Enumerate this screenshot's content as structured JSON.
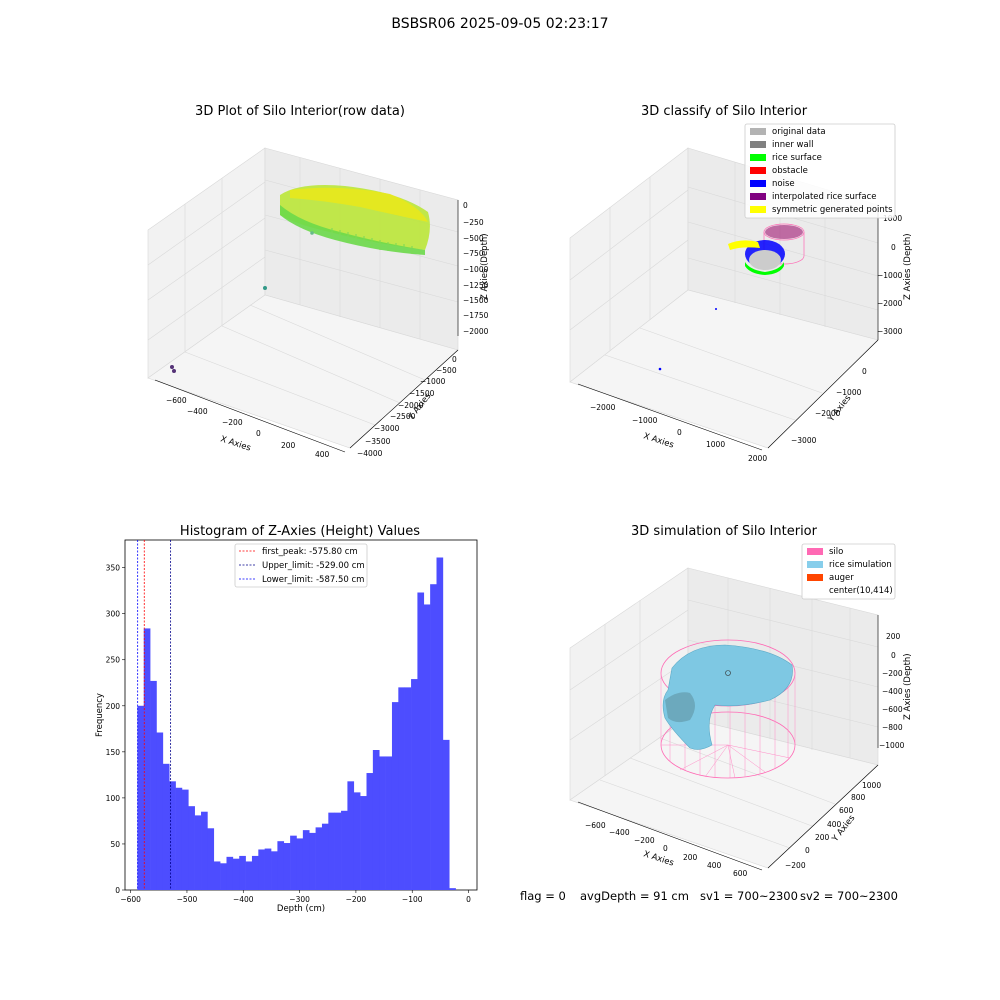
{
  "suptitle": "BSBSR06 2025-09-05 02:23:17",
  "footer": {
    "flag": "flag = 0",
    "avg": "avgDepth = 91 cm",
    "sv1": "sv1 = 700~2300",
    "sv2": "sv2 = 700~2300"
  },
  "chart_data": [
    {
      "type": "scatter",
      "title": "3D Plot of Silo Interior(row data)",
      "xlabel": "X Axies",
      "ylabel": "Y Axies",
      "zlabel": "Z Axies (Depth)",
      "xticks": [
        "−600",
        "−400",
        "−200",
        "0",
        "200",
        "400"
      ],
      "yticks": [
        "−4000",
        "−3500",
        "−3000",
        "−2500",
        "−2000",
        "−1500",
        "−1000",
        "−500",
        "0"
      ],
      "zticks": [
        "0",
        "−250",
        "−500",
        "−750",
        "−1000",
        "−1250",
        "−1500",
        "−1750",
        "−2000"
      ]
    },
    {
      "type": "scatter",
      "title": "3D classify of Silo Interior",
      "xlabel": "X Axies",
      "ylabel": "Y Axies",
      "zlabel": "Z Axies (Depth)",
      "xticks": [
        "−2000",
        "−1000",
        "0",
        "1000",
        "2000"
      ],
      "yticks": [
        "−3000",
        "−2000",
        "−1000",
        "0"
      ],
      "zticks": [
        "1000",
        "0",
        "−1000",
        "−2000",
        "−3000"
      ],
      "legend": [
        {
          "label": "original data",
          "color": "#b3b3b3"
        },
        {
          "label": "inner wall",
          "color": "#808080"
        },
        {
          "label": "rice surface",
          "color": "#00ff00"
        },
        {
          "label": "obstacle",
          "color": "#ff0000"
        },
        {
          "label": "noise",
          "color": "#0000ff"
        },
        {
          "label": "interpolated rice surface",
          "color": "#800080"
        },
        {
          "label": "symmetric generated points",
          "color": "#ffff00"
        }
      ],
      "legend_loc": "upper right"
    },
    {
      "type": "bar",
      "title": "Histogram of Z-Axies (Height) Values",
      "xlabel": "Depth (cm)",
      "ylabel": "Frequency",
      "xlim": [
        -600,
        0
      ],
      "ylim": [
        0,
        380
      ],
      "xticks": [
        -600,
        -500,
        -400,
        -300,
        -200,
        -100,
        0
      ],
      "xtick_labels": [
        "−600",
        "−500",
        "−400",
        "−300",
        "−200",
        "−100",
        "0"
      ],
      "yticks": [
        0,
        50,
        100,
        150,
        200,
        250,
        300,
        350
      ],
      "bin_start": -588,
      "bin_width": 11.3,
      "values": [
        200,
        284,
        227,
        171,
        137,
        118,
        111,
        109,
        91,
        81,
        85,
        67,
        31,
        29,
        36,
        34,
        37,
        31,
        37,
        44,
        45,
        42,
        53,
        51,
        59,
        56,
        65,
        62,
        68,
        72,
        84,
        84,
        86,
        118,
        106,
        102,
        127,
        152,
        145,
        145,
        204,
        220,
        220,
        229,
        323,
        310,
        332,
        361,
        163,
        2
      ],
      "color": "#4d4dff",
      "lines": [
        {
          "label": "first_peak: -575.80 cm",
          "x": -575.8,
          "color": "#ff0000"
        },
        {
          "label": "Upper_limit: -529.00 cm",
          "x": -529.0,
          "color": "#00008b"
        },
        {
          "label": "Lower_limit: -587.50 cm",
          "x": -587.5,
          "color": "#0000ff"
        }
      ],
      "legend_loc": "upper center"
    },
    {
      "type": "scatter",
      "title": "3D simulation of Silo Interior",
      "xlabel": "X Axies",
      "ylabel": "Y Axies",
      "zlabel": "Z Axies (Depth)",
      "xticks": [
        "−600",
        "−400",
        "−200",
        "0",
        "200",
        "400",
        "600"
      ],
      "yticks": [
        "−200",
        "0",
        "200",
        "400",
        "600",
        "800",
        "1000"
      ],
      "zticks": [
        "200",
        "0",
        "−200",
        "−400",
        "−600",
        "−800",
        "−1000"
      ],
      "legend": [
        {
          "label": "silo",
          "color": "#ff69b4"
        },
        {
          "label": "rice simulation",
          "color": "#87ceeb"
        },
        {
          "label": "auger",
          "color": "#ff4500"
        },
        {
          "label": "center(10,414)",
          "color": "none"
        }
      ],
      "legend_loc": "upper right"
    }
  ]
}
